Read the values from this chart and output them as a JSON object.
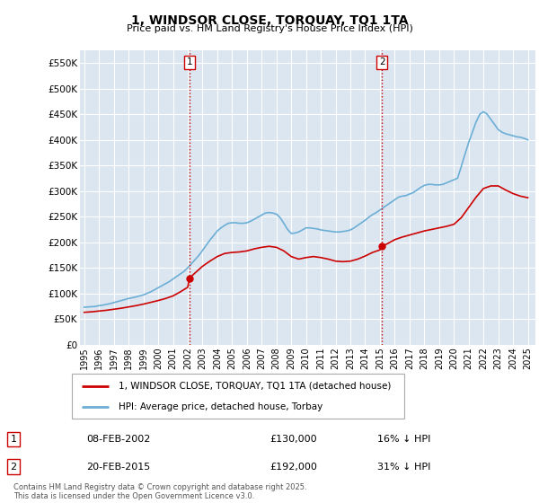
{
  "title": "1, WINDSOR CLOSE, TORQUAY, TQ1 1TA",
  "subtitle": "Price paid vs. HM Land Registry's House Price Index (HPI)",
  "background_color": "#ffffff",
  "plot_bg_color": "#dce6f1",
  "grid_color": "#ffffff",
  "hpi_color": "#6baed6",
  "price_color": "#cc0000",
  "vline_color": "#cc0000",
  "sale1_year": 2002.12,
  "sale1_price": 130000,
  "sale1_date": "08-FEB-2002",
  "sale1_hpi_diff": "16% ↓ HPI",
  "sale2_year": 2015.13,
  "sale2_price": 192000,
  "sale2_date": "20-FEB-2015",
  "sale2_hpi_diff": "31% ↓ HPI",
  "ylim": [
    0,
    575000
  ],
  "yticks": [
    0,
    50000,
    100000,
    150000,
    200000,
    250000,
    300000,
    350000,
    400000,
    450000,
    500000,
    550000
  ],
  "yticklabels": [
    "£0",
    "£50K",
    "£100K",
    "£150K",
    "£200K",
    "£250K",
    "£300K",
    "£350K",
    "£400K",
    "£450K",
    "£500K",
    "£550K"
  ],
  "xlim_start": 1994.7,
  "xlim_end": 2025.5,
  "xtick_years": [
    1995,
    1996,
    1997,
    1998,
    1999,
    2000,
    2001,
    2002,
    2003,
    2004,
    2005,
    2006,
    2007,
    2008,
    2009,
    2010,
    2011,
    2012,
    2013,
    2014,
    2015,
    2016,
    2017,
    2018,
    2019,
    2020,
    2021,
    2022,
    2023,
    2024,
    2025
  ],
  "legend_price_label": "1, WINDSOR CLOSE, TORQUAY, TQ1 1TA (detached house)",
  "legend_hpi_label": "HPI: Average price, detached house, Torbay",
  "footer": "Contains HM Land Registry data © Crown copyright and database right 2025.\nThis data is licensed under the Open Government Licence v3.0.",
  "hpi_data_x": [
    1995.0,
    1995.25,
    1995.5,
    1995.75,
    1996.0,
    1996.25,
    1996.5,
    1996.75,
    1997.0,
    1997.25,
    1997.5,
    1997.75,
    1998.0,
    1998.25,
    1998.5,
    1998.75,
    1999.0,
    1999.25,
    1999.5,
    1999.75,
    2000.0,
    2000.25,
    2000.5,
    2000.75,
    2001.0,
    2001.25,
    2001.5,
    2001.75,
    2002.0,
    2002.25,
    2002.5,
    2002.75,
    2003.0,
    2003.25,
    2003.5,
    2003.75,
    2004.0,
    2004.25,
    2004.5,
    2004.75,
    2005.0,
    2005.25,
    2005.5,
    2005.75,
    2006.0,
    2006.25,
    2006.5,
    2006.75,
    2007.0,
    2007.25,
    2007.5,
    2007.75,
    2008.0,
    2008.25,
    2008.5,
    2008.75,
    2009.0,
    2009.25,
    2009.5,
    2009.75,
    2010.0,
    2010.25,
    2010.5,
    2010.75,
    2011.0,
    2011.25,
    2011.5,
    2011.75,
    2012.0,
    2012.25,
    2012.5,
    2012.75,
    2013.0,
    2013.25,
    2013.5,
    2013.75,
    2014.0,
    2014.25,
    2014.5,
    2014.75,
    2015.0,
    2015.25,
    2015.5,
    2015.75,
    2016.0,
    2016.25,
    2016.5,
    2016.75,
    2017.0,
    2017.25,
    2017.5,
    2017.75,
    2018.0,
    2018.25,
    2018.5,
    2018.75,
    2019.0,
    2019.25,
    2019.5,
    2019.75,
    2020.0,
    2020.25,
    2020.5,
    2020.75,
    2021.0,
    2021.25,
    2021.5,
    2021.75,
    2022.0,
    2022.25,
    2022.5,
    2022.75,
    2023.0,
    2023.25,
    2023.5,
    2023.75,
    2024.0,
    2024.25,
    2024.5,
    2024.75,
    2025.0
  ],
  "hpi_data_y": [
    73000,
    73500,
    74000,
    74500,
    76000,
    77000,
    78500,
    80000,
    82000,
    84000,
    86000,
    88000,
    90000,
    91500,
    93000,
    95000,
    97000,
    100000,
    103000,
    107000,
    111000,
    115000,
    119000,
    123000,
    128000,
    133000,
    138000,
    143000,
    150000,
    158000,
    166000,
    174000,
    184000,
    194000,
    204000,
    213000,
    222000,
    228000,
    233000,
    237000,
    238000,
    238000,
    237000,
    237000,
    238000,
    241000,
    245000,
    249000,
    253000,
    257000,
    258000,
    257000,
    255000,
    248000,
    237000,
    225000,
    217000,
    218000,
    220000,
    224000,
    228000,
    228000,
    227000,
    226000,
    224000,
    223000,
    222000,
    221000,
    220000,
    220000,
    221000,
    222000,
    224000,
    228000,
    233000,
    238000,
    243000,
    249000,
    254000,
    258000,
    263000,
    268000,
    273000,
    278000,
    283000,
    288000,
    290000,
    291000,
    294000,
    297000,
    302000,
    307000,
    311000,
    313000,
    313000,
    312000,
    312000,
    313000,
    316000,
    319000,
    322000,
    325000,
    348000,
    372000,
    395000,
    415000,
    435000,
    450000,
    455000,
    450000,
    440000,
    430000,
    420000,
    415000,
    412000,
    410000,
    408000,
    406000,
    405000,
    403000,
    400000
  ],
  "price_data_x": [
    1995.0,
    1995.5,
    1996.0,
    1996.5,
    1997.0,
    1997.5,
    1998.0,
    1998.5,
    1999.0,
    1999.5,
    2000.0,
    2000.5,
    2001.0,
    2001.5,
    2002.0,
    2002.12,
    2002.5,
    2003.0,
    2003.5,
    2004.0,
    2004.5,
    2005.0,
    2005.5,
    2006.0,
    2006.5,
    2007.0,
    2007.5,
    2008.0,
    2008.5,
    2009.0,
    2009.5,
    2010.0,
    2010.5,
    2011.0,
    2011.5,
    2012.0,
    2012.5,
    2013.0,
    2013.5,
    2014.0,
    2014.5,
    2015.0,
    2015.13,
    2015.5,
    2016.0,
    2016.5,
    2017.0,
    2017.5,
    2018.0,
    2018.5,
    2019.0,
    2019.5,
    2020.0,
    2020.5,
    2021.0,
    2021.5,
    2022.0,
    2022.5,
    2023.0,
    2023.5,
    2024.0,
    2024.5,
    2025.0
  ],
  "price_data_y": [
    63000,
    64000,
    65500,
    67000,
    69000,
    71000,
    73500,
    76000,
    79000,
    82500,
    86000,
    90000,
    95000,
    103000,
    112000,
    130000,
    140000,
    153000,
    163000,
    172000,
    178000,
    180000,
    181000,
    183000,
    187000,
    190000,
    192000,
    190000,
    183000,
    172000,
    167000,
    170000,
    172000,
    170000,
    167000,
    163000,
    162000,
    163000,
    167000,
    173000,
    180000,
    185000,
    192000,
    197000,
    205000,
    210000,
    214000,
    218000,
    222000,
    225000,
    228000,
    231000,
    235000,
    248000,
    268000,
    288000,
    305000,
    310000,
    310000,
    302000,
    295000,
    290000,
    287000
  ]
}
